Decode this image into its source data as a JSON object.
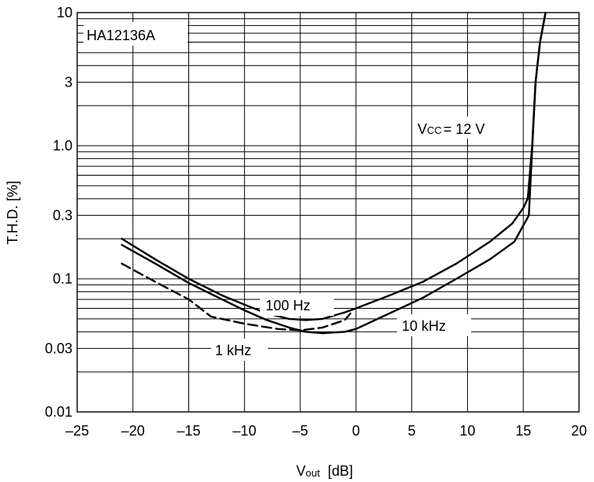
{
  "chart_data": {
    "type": "line",
    "x_axis": {
      "label_main": "V",
      "label_sub": "out",
      "label_unit": "[dB]",
      "range": [
        -25,
        20
      ],
      "ticks": [
        -25,
        -20,
        -15,
        -10,
        -5,
        0,
        5,
        10,
        15,
        20
      ],
      "tick_labels": [
        "–25",
        "–20",
        "–15",
        "–10",
        "–5",
        "0",
        "5",
        "10",
        "15",
        "20"
      ]
    },
    "y_axis": {
      "label": "T.H.D. [%]",
      "scale": "log",
      "range": [
        0.01,
        10
      ],
      "tick_values": [
        0.01,
        0.03,
        0.1,
        0.3,
        1.0,
        3,
        10
      ],
      "tick_labels": [
        "0.01",
        "0.03",
        "0.1",
        "0.3",
        "1.0",
        "3",
        "10"
      ]
    },
    "grid": true,
    "annotations": {
      "part_number": "HA12136A",
      "vcc_main": "V",
      "vcc_sub": "CC",
      "vcc_value": "= 12 V"
    },
    "series": [
      {
        "name": "100 Hz",
        "style": "solid",
        "points": [
          [
            -21,
            0.2
          ],
          [
            -18,
            0.14
          ],
          [
            -15,
            0.1
          ],
          [
            -12,
            0.075
          ],
          [
            -10,
            0.064
          ],
          [
            -8,
            0.055
          ],
          [
            -6,
            0.05
          ],
          [
            -4.5,
            0.049
          ],
          [
            -3,
            0.05
          ],
          [
            -1,
            0.056
          ],
          [
            0,
            0.06
          ],
          [
            3,
            0.075
          ],
          [
            6,
            0.095
          ],
          [
            9,
            0.13
          ],
          [
            12,
            0.19
          ],
          [
            14,
            0.26
          ],
          [
            15,
            0.34
          ],
          [
            15.4,
            0.4
          ],
          [
            15.8,
            1.0
          ],
          [
            16.1,
            3.0
          ],
          [
            16.5,
            6.0
          ],
          [
            17,
            10
          ]
        ]
      },
      {
        "name": "10 kHz",
        "style": "solid",
        "points": [
          [
            -21,
            0.18
          ],
          [
            -18,
            0.13
          ],
          [
            -15,
            0.093
          ],
          [
            -12,
            0.07
          ],
          [
            -10,
            0.058
          ],
          [
            -8,
            0.049
          ],
          [
            -6,
            0.043
          ],
          [
            -4.5,
            0.04
          ],
          [
            -3,
            0.039
          ],
          [
            -1,
            0.04
          ],
          [
            0,
            0.042
          ],
          [
            3,
            0.055
          ],
          [
            6,
            0.072
          ],
          [
            9,
            0.1
          ],
          [
            12,
            0.14
          ],
          [
            14.2,
            0.19
          ],
          [
            15.5,
            0.3
          ],
          [
            16.1,
            3.0
          ],
          [
            16.5,
            6.0
          ],
          [
            17,
            10
          ]
        ]
      },
      {
        "name": "1 kHz",
        "style": "dashed",
        "points": [
          [
            -21,
            0.13
          ],
          [
            -18,
            0.095
          ],
          [
            -15,
            0.07
          ],
          [
            -13,
            0.052
          ],
          [
            -10,
            0.046
          ],
          [
            -7,
            0.042
          ],
          [
            -5,
            0.041
          ],
          [
            -3,
            0.043
          ],
          [
            -1,
            0.049
          ],
          [
            -0.5,
            0.055
          ]
        ]
      }
    ],
    "series_labels": [
      "100 Hz",
      "10 kHz",
      "1 kHz"
    ]
  }
}
